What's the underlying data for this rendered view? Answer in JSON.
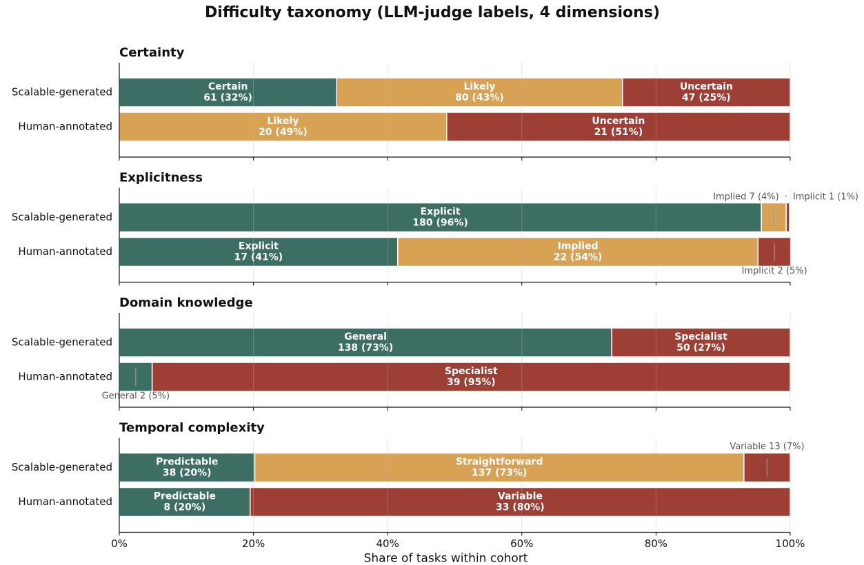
{
  "title": "Difficulty taxonomy  (LLM-judge labels, 4 dimensions)",
  "label_separator": "·",
  "chart_data": [
    {
      "type": "bar",
      "orientation": "horizontal",
      "stacked": true,
      "title": "Certainty",
      "categories": [
        "Scalable-generated",
        "Human-annotated"
      ],
      "series": [
        {
          "name": "Certain",
          "color": "#3d6e63",
          "values": [
            32.4,
            null
          ],
          "value_labels": [
            "61 (32%)",
            null
          ]
        },
        {
          "name": "Likely",
          "color": "#d8a255",
          "values": [
            42.6,
            48.8
          ],
          "value_labels": [
            "80 (43%)",
            "20 (49%)"
          ]
        },
        {
          "name": "Uncertain",
          "color": "#9e3f35",
          "values": [
            25.0,
            51.2
          ],
          "value_labels": [
            "47 (25%)",
            "21 (51%)"
          ]
        }
      ],
      "xlim": [
        0,
        100
      ],
      "xticks": [
        0,
        20,
        40,
        60,
        80,
        100
      ],
      "grid": true
    },
    {
      "type": "bar",
      "orientation": "horizontal",
      "stacked": true,
      "title": "Explicitness",
      "categories": [
        "Scalable-generated",
        "Human-annotated"
      ],
      "series": [
        {
          "name": "Explicit",
          "color": "#3d6e63",
          "values": [
            95.7,
            41.5
          ],
          "value_labels": [
            "180 (96%)",
            "17 (41%)"
          ]
        },
        {
          "name": "Implied",
          "color": "#d8a255",
          "values": [
            3.7,
            53.7
          ],
          "value_labels": [
            "Implied 7 (4%)",
            "22 (54%)"
          ]
        },
        {
          "name": "Implicit",
          "color": "#9e3f35",
          "values": [
            0.5,
            4.9
          ],
          "value_labels": [
            "Implicit 1 (1%)",
            "Implicit 2 (5%)"
          ]
        }
      ],
      "xlim": [
        0,
        100
      ],
      "xticks": [
        0,
        20,
        40,
        60,
        80,
        100
      ],
      "grid": true
    },
    {
      "type": "bar",
      "orientation": "horizontal",
      "stacked": true,
      "title": "Domain knowledge",
      "categories": [
        "Scalable-generated",
        "Human-annotated"
      ],
      "series": [
        {
          "name": "General",
          "color": "#3d6e63",
          "values": [
            73.4,
            4.9
          ],
          "value_labels": [
            "138 (73%)",
            "General 2 (5%)"
          ]
        },
        {
          "name": "Specialist",
          "color": "#9e3f35",
          "values": [
            26.6,
            95.1
          ],
          "value_labels": [
            "50 (27%)",
            "39 (95%)"
          ]
        }
      ],
      "xlim": [
        0,
        100
      ],
      "xticks": [
        0,
        20,
        40,
        60,
        80,
        100
      ],
      "grid": true
    },
    {
      "type": "bar",
      "orientation": "horizontal",
      "stacked": true,
      "title": "Temporal complexity",
      "categories": [
        "Scalable-generated",
        "Human-annotated"
      ],
      "series": [
        {
          "name": "Predictable",
          "color": "#3d6e63",
          "values": [
            20.2,
            19.5
          ],
          "value_labels": [
            "38 (20%)",
            "8 (20%)"
          ]
        },
        {
          "name": "Straightforward",
          "color": "#d8a255",
          "values": [
            72.9,
            null
          ],
          "value_labels": [
            "137 (73%)",
            null
          ]
        },
        {
          "name": "Variable",
          "color": "#9e3f35",
          "values": [
            6.9,
            80.5
          ],
          "value_labels": [
            "Variable 13 (7%)",
            "33 (80%)"
          ]
        }
      ],
      "xlim": [
        0,
        100
      ],
      "xticks": [
        {
          "value": 0,
          "label": "0%"
        },
        {
          "value": 20,
          "label": "20%"
        },
        {
          "value": 40,
          "label": "40%"
        },
        {
          "value": 60,
          "label": "60%"
        },
        {
          "value": 80,
          "label": "80%"
        },
        {
          "value": 100,
          "label": "100%"
        }
      ],
      "xlabel": "Share of tasks within cohort",
      "grid": true
    }
  ]
}
